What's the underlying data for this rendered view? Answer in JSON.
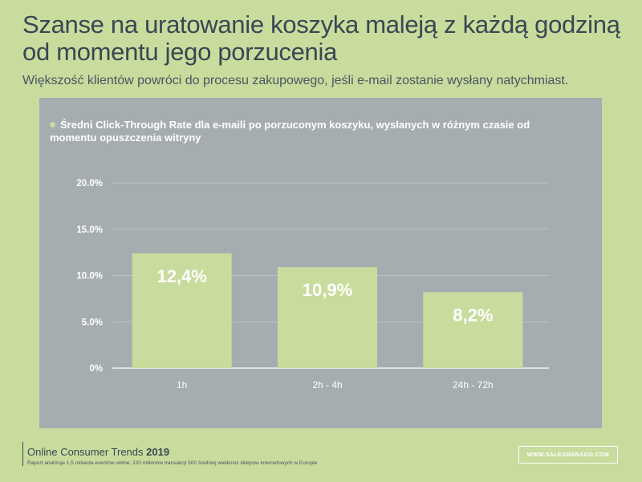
{
  "header": {
    "title": "Szanse na uratowanie koszyka maleją z każdą godziną od momentu jego porzucenia",
    "subtitle": "Większość klientów powróci do procesu zakupowego, jeśli e-mail zostanie wysłany natychmiast."
  },
  "colors": {
    "background": "#c8dc9e",
    "panel": "#a6adb1",
    "bar": "#c8dc9e",
    "text_dark": "#3a4652"
  },
  "chart_data": {
    "type": "bar",
    "title": "",
    "legend": "Średni Click-Through Rate dla e-maili po porzuconym koszyku, wysłanych w różnym czasie od momentu opuszczenia witryny",
    "categories": [
      "1h",
      "2h - 4h",
      "24h - 72h"
    ],
    "values": [
      12.4,
      10.9,
      8.2
    ],
    "value_labels": [
      "12,4%",
      "10,9%",
      "8,2%"
    ],
    "yticks": [
      0,
      5,
      10,
      15,
      20
    ],
    "ytick_labels": [
      "0%",
      "5.0%",
      "10.0%",
      "15.0%",
      "20.0%"
    ],
    "ylim": [
      0,
      20
    ],
    "grid": true,
    "xlabel": "",
    "ylabel": ""
  },
  "footer": {
    "title": "Online Consumer Trends",
    "year": "2019",
    "note": "Raport analizuje 1,5 miliarda eventów online, 120 milionów transakcji 500 średniej wielkości sklepów internetowych w Europie",
    "brand": "WWW.SALESMANAGO.COM"
  }
}
